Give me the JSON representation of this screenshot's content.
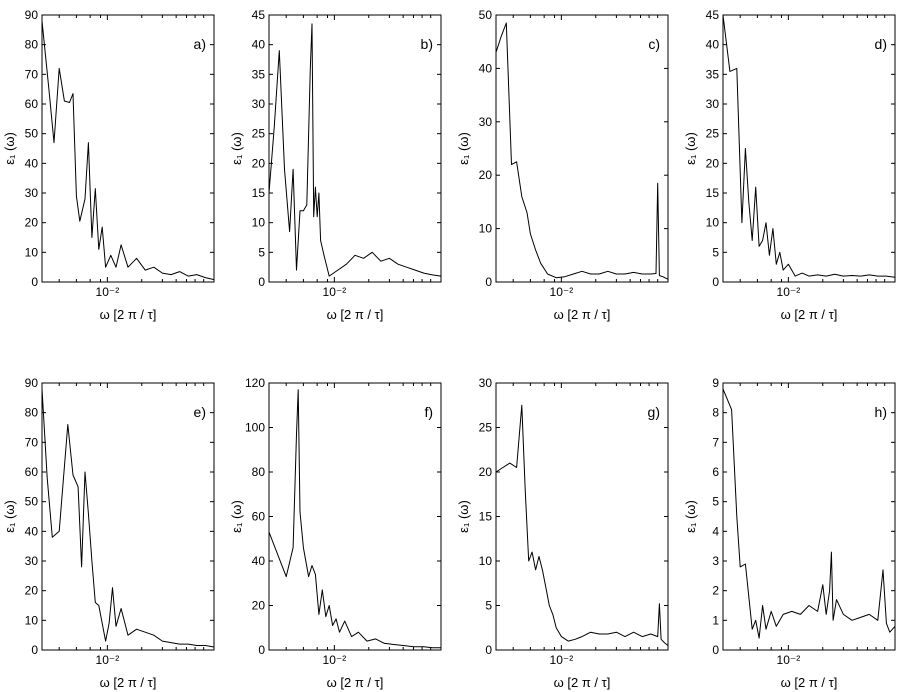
{
  "chart_data": [
    {
      "type": "line",
      "panel_label": "a)",
      "xlabel": "ω [2 π / τ]",
      "ylabel": "ε₁ (ω)",
      "ylim": [
        0,
        90
      ],
      "yticks": [
        0,
        10,
        20,
        30,
        40,
        50,
        60,
        70,
        80,
        90
      ],
      "xtick_label": "10⁻²",
      "points": [
        [
          0.0,
          88
        ],
        [
          0.04,
          65
        ],
        [
          0.07,
          47
        ],
        [
          0.1,
          72
        ],
        [
          0.13,
          61
        ],
        [
          0.16,
          60.5
        ],
        [
          0.18,
          63.5
        ],
        [
          0.2,
          29
        ],
        [
          0.22,
          20.5
        ],
        [
          0.25,
          28
        ],
        [
          0.27,
          47
        ],
        [
          0.29,
          15
        ],
        [
          0.31,
          31.5
        ],
        [
          0.33,
          11
        ],
        [
          0.35,
          18.5
        ],
        [
          0.37,
          5
        ],
        [
          0.4,
          9
        ],
        [
          0.43,
          5
        ],
        [
          0.46,
          12.5
        ],
        [
          0.5,
          5
        ],
        [
          0.55,
          8
        ],
        [
          0.6,
          4
        ],
        [
          0.65,
          5
        ],
        [
          0.7,
          3
        ],
        [
          0.75,
          2.5
        ],
        [
          0.8,
          3.5
        ],
        [
          0.85,
          2
        ],
        [
          0.9,
          2.5
        ],
        [
          0.95,
          1.5
        ],
        [
          1.0,
          0.8
        ]
      ]
    },
    {
      "type": "line",
      "panel_label": "b)",
      "xlabel": "ω [2 π / τ]",
      "ylabel": "ε₁ (ω)",
      "ylim": [
        0,
        45
      ],
      "yticks": [
        0,
        5,
        10,
        15,
        20,
        25,
        30,
        35,
        40,
        45
      ],
      "xtick_label": "10⁻²",
      "points": [
        [
          0.0,
          15
        ],
        [
          0.03,
          26
        ],
        [
          0.06,
          39
        ],
        [
          0.09,
          19
        ],
        [
          0.12,
          8.5
        ],
        [
          0.14,
          19
        ],
        [
          0.16,
          2
        ],
        [
          0.18,
          12
        ],
        [
          0.2,
          12
        ],
        [
          0.22,
          13
        ],
        [
          0.24,
          36
        ],
        [
          0.25,
          43.5
        ],
        [
          0.26,
          11
        ],
        [
          0.27,
          16
        ],
        [
          0.28,
          11
        ],
        [
          0.29,
          15
        ],
        [
          0.3,
          7
        ],
        [
          0.32,
          4.5
        ],
        [
          0.35,
          1
        ],
        [
          0.4,
          2
        ],
        [
          0.45,
          3
        ],
        [
          0.5,
          4.5
        ],
        [
          0.55,
          4
        ],
        [
          0.6,
          5
        ],
        [
          0.65,
          3.5
        ],
        [
          0.7,
          4
        ],
        [
          0.75,
          3
        ],
        [
          0.8,
          2.5
        ],
        [
          0.85,
          2
        ],
        [
          0.9,
          1.5
        ],
        [
          0.95,
          1.2
        ],
        [
          1.0,
          1
        ]
      ]
    },
    {
      "type": "line",
      "panel_label": "c)",
      "xlabel": "ω [2 π / τ]",
      "ylabel": "ε₁ (ω)",
      "ylim": [
        0,
        50
      ],
      "yticks": [
        0,
        10,
        20,
        30,
        40,
        50
      ],
      "xtick_label": "10⁻²",
      "points": [
        [
          0.0,
          43
        ],
        [
          0.03,
          46
        ],
        [
          0.06,
          48.5
        ],
        [
          0.09,
          22
        ],
        [
          0.12,
          22.5
        ],
        [
          0.15,
          16
        ],
        [
          0.18,
          13
        ],
        [
          0.2,
          9
        ],
        [
          0.23,
          6
        ],
        [
          0.26,
          3.5
        ],
        [
          0.3,
          1.5
        ],
        [
          0.35,
          0.8
        ],
        [
          0.4,
          1
        ],
        [
          0.45,
          1.5
        ],
        [
          0.5,
          2
        ],
        [
          0.55,
          1.5
        ],
        [
          0.6,
          1.5
        ],
        [
          0.65,
          2
        ],
        [
          0.7,
          1.5
        ],
        [
          0.75,
          1.5
        ],
        [
          0.8,
          1.8
        ],
        [
          0.85,
          1.5
        ],
        [
          0.9,
          1.5
        ],
        [
          0.93,
          1.6
        ],
        [
          0.94,
          18.5
        ],
        [
          0.95,
          1.2
        ],
        [
          0.97,
          1
        ],
        [
          1.0,
          0.5
        ]
      ]
    },
    {
      "type": "line",
      "panel_label": "d)",
      "xlabel": "ω [2 π / τ]",
      "ylabel": "ε₁ (ω)",
      "ylim": [
        0,
        45
      ],
      "yticks": [
        0,
        5,
        10,
        15,
        20,
        25,
        30,
        35,
        40,
        45
      ],
      "xtick_label": "10⁻²",
      "points": [
        [
          0.0,
          45
        ],
        [
          0.04,
          35.5
        ],
        [
          0.08,
          36
        ],
        [
          0.11,
          10
        ],
        [
          0.13,
          22.5
        ],
        [
          0.15,
          13.5
        ],
        [
          0.17,
          7
        ],
        [
          0.19,
          16
        ],
        [
          0.21,
          6
        ],
        [
          0.23,
          7
        ],
        [
          0.25,
          10
        ],
        [
          0.27,
          4.5
        ],
        [
          0.29,
          9
        ],
        [
          0.31,
          3
        ],
        [
          0.33,
          5
        ],
        [
          0.35,
          2
        ],
        [
          0.38,
          3
        ],
        [
          0.42,
          1
        ],
        [
          0.46,
          1.5
        ],
        [
          0.5,
          1
        ],
        [
          0.55,
          1.2
        ],
        [
          0.6,
          1
        ],
        [
          0.65,
          1.3
        ],
        [
          0.7,
          1
        ],
        [
          0.75,
          1.1
        ],
        [
          0.8,
          1
        ],
        [
          0.85,
          1.2
        ],
        [
          0.9,
          1
        ],
        [
          0.95,
          1
        ],
        [
          1.0,
          0.8
        ]
      ]
    },
    {
      "type": "line",
      "panel_label": "e)",
      "xlabel": "ω [2 π / τ]",
      "ylabel": "ε₁ (ω)",
      "ylim": [
        0,
        90
      ],
      "yticks": [
        0,
        10,
        20,
        30,
        40,
        50,
        60,
        70,
        80,
        90
      ],
      "xtick_label": "10⁻²",
      "points": [
        [
          0.0,
          88
        ],
        [
          0.03,
          58
        ],
        [
          0.06,
          38
        ],
        [
          0.1,
          40
        ],
        [
          0.15,
          76
        ],
        [
          0.18,
          59
        ],
        [
          0.21,
          55
        ],
        [
          0.23,
          28
        ],
        [
          0.25,
          60
        ],
        [
          0.27,
          46
        ],
        [
          0.29,
          30
        ],
        [
          0.31,
          16
        ],
        [
          0.33,
          15
        ],
        [
          0.35,
          9
        ],
        [
          0.37,
          3
        ],
        [
          0.39,
          9
        ],
        [
          0.41,
          21
        ],
        [
          0.43,
          8
        ],
        [
          0.46,
          14
        ],
        [
          0.5,
          5
        ],
        [
          0.55,
          7
        ],
        [
          0.6,
          6
        ],
        [
          0.65,
          5
        ],
        [
          0.7,
          3
        ],
        [
          0.75,
          2.5
        ],
        [
          0.8,
          2
        ],
        [
          0.85,
          2
        ],
        [
          0.9,
          1.5
        ],
        [
          0.95,
          1.5
        ],
        [
          1.0,
          1
        ]
      ]
    },
    {
      "type": "line",
      "panel_label": "f)",
      "xlabel": "ω [2 π / τ]",
      "ylabel": "ε₁ (ω)",
      "ylim": [
        0,
        120
      ],
      "yticks": [
        0,
        20,
        40,
        60,
        80,
        100,
        120
      ],
      "xtick_label": "10⁻²",
      "points": [
        [
          0.0,
          53
        ],
        [
          0.1,
          33
        ],
        [
          0.14,
          46
        ],
        [
          0.16,
          97
        ],
        [
          0.17,
          117
        ],
        [
          0.18,
          62
        ],
        [
          0.2,
          46
        ],
        [
          0.23,
          33
        ],
        [
          0.25,
          38
        ],
        [
          0.27,
          34
        ],
        [
          0.29,
          16
        ],
        [
          0.31,
          27
        ],
        [
          0.33,
          15
        ],
        [
          0.35,
          20
        ],
        [
          0.37,
          11
        ],
        [
          0.39,
          14
        ],
        [
          0.41,
          8
        ],
        [
          0.44,
          13
        ],
        [
          0.48,
          6
        ],
        [
          0.52,
          8
        ],
        [
          0.57,
          4
        ],
        [
          0.62,
          5
        ],
        [
          0.67,
          3
        ],
        [
          0.72,
          2.5
        ],
        [
          0.78,
          2
        ],
        [
          0.84,
          1.5
        ],
        [
          0.9,
          1.5
        ],
        [
          0.95,
          1
        ],
        [
          1.0,
          1
        ]
      ]
    },
    {
      "type": "line",
      "panel_label": "g)",
      "xlabel": "ω [2 π / τ]",
      "ylabel": "ε₁ (ω)",
      "ylim": [
        0,
        30
      ],
      "yticks": [
        0,
        5,
        10,
        15,
        20,
        25,
        30
      ],
      "xtick_label": "10⁻²",
      "points": [
        [
          0.0,
          20
        ],
        [
          0.04,
          20.5
        ],
        [
          0.08,
          21
        ],
        [
          0.12,
          20.5
        ],
        [
          0.15,
          27.5
        ],
        [
          0.17,
          18
        ],
        [
          0.19,
          10
        ],
        [
          0.21,
          11
        ],
        [
          0.23,
          9
        ],
        [
          0.25,
          10.5
        ],
        [
          0.27,
          9
        ],
        [
          0.29,
          7
        ],
        [
          0.31,
          5
        ],
        [
          0.33,
          4
        ],
        [
          0.35,
          2.5
        ],
        [
          0.38,
          1.5
        ],
        [
          0.42,
          1
        ],
        [
          0.46,
          1.2
        ],
        [
          0.5,
          1.5
        ],
        [
          0.55,
          2
        ],
        [
          0.6,
          1.8
        ],
        [
          0.65,
          1.8
        ],
        [
          0.7,
          2
        ],
        [
          0.75,
          1.5
        ],
        [
          0.8,
          2
        ],
        [
          0.85,
          1.5
        ],
        [
          0.9,
          1.8
        ],
        [
          0.94,
          1.5
        ],
        [
          0.95,
          5.2
        ],
        [
          0.96,
          1.2
        ],
        [
          0.98,
          0.8
        ],
        [
          1.0,
          0.5
        ]
      ]
    },
    {
      "type": "line",
      "panel_label": "h)",
      "xlabel": "ω [2 π / τ]",
      "ylabel": "ε₁ (ω)",
      "ylim": [
        0,
        9
      ],
      "yticks": [
        0,
        1,
        2,
        3,
        4,
        5,
        6,
        7,
        8,
        9
      ],
      "xtick_label": "10⁻²",
      "points": [
        [
          0.0,
          8.8
        ],
        [
          0.05,
          8.1
        ],
        [
          0.08,
          4.5
        ],
        [
          0.1,
          2.8
        ],
        [
          0.13,
          2.9
        ],
        [
          0.15,
          1.8
        ],
        [
          0.17,
          0.7
        ],
        [
          0.19,
          1
        ],
        [
          0.21,
          0.4
        ],
        [
          0.23,
          1.5
        ],
        [
          0.25,
          0.7
        ],
        [
          0.28,
          1.3
        ],
        [
          0.31,
          0.8
        ],
        [
          0.35,
          1.2
        ],
        [
          0.4,
          1.3
        ],
        [
          0.45,
          1.2
        ],
        [
          0.5,
          1.5
        ],
        [
          0.55,
          1.3
        ],
        [
          0.58,
          2.2
        ],
        [
          0.6,
          1.2
        ],
        [
          0.62,
          2
        ],
        [
          0.63,
          3.3
        ],
        [
          0.64,
          1
        ],
        [
          0.66,
          1.7
        ],
        [
          0.7,
          1.2
        ],
        [
          0.75,
          1
        ],
        [
          0.8,
          1.1
        ],
        [
          0.85,
          1.2
        ],
        [
          0.9,
          1
        ],
        [
          0.93,
          2.7
        ],
        [
          0.95,
          0.9
        ],
        [
          0.97,
          0.6
        ],
        [
          1.0,
          0.8
        ]
      ]
    }
  ]
}
